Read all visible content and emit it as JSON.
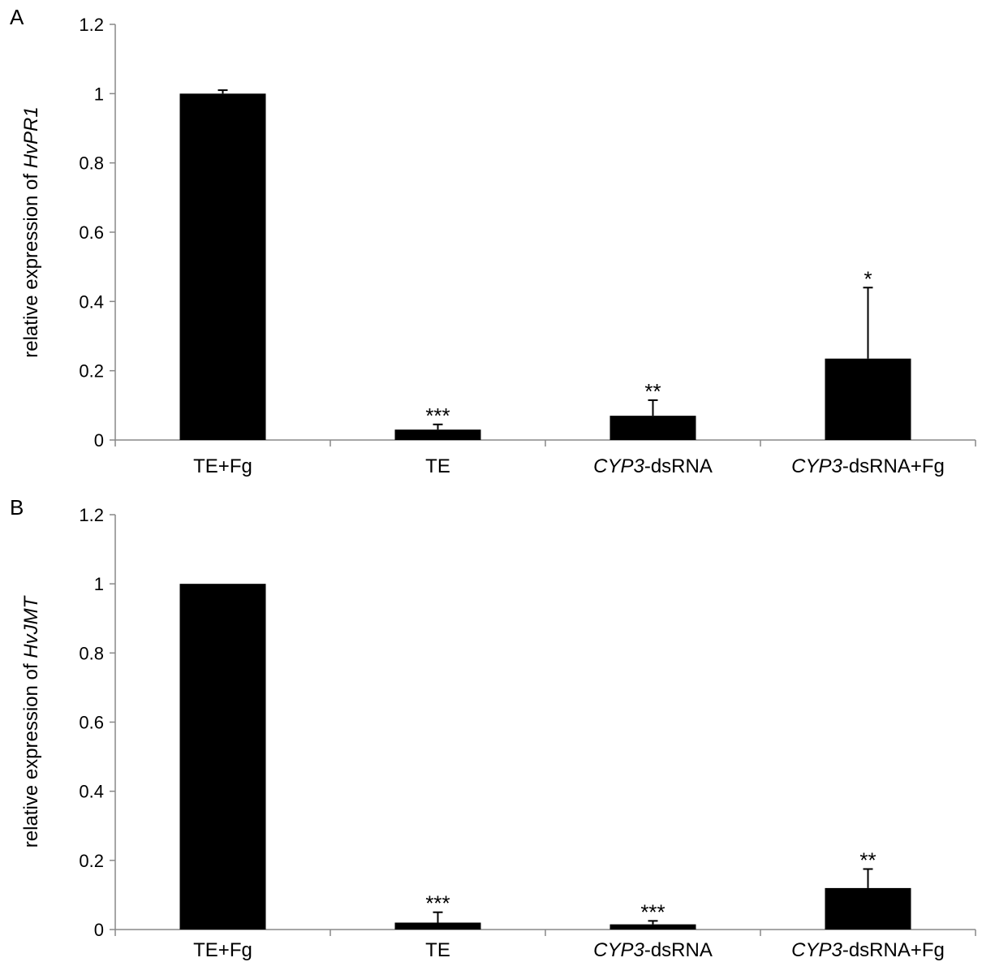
{
  "chart_data": [
    {
      "type": "bar",
      "panel_label": "A",
      "categories": [
        {
          "label": "TE+Fg",
          "italic": "",
          "rest": "TE+Fg"
        },
        {
          "label": "TE",
          "italic": "",
          "rest": "TE"
        },
        {
          "label": "CYP3-dsRNA",
          "italic": "CYP3",
          "rest": "-dsRNA"
        },
        {
          "label": "CYP3-dsRNA+Fg",
          "italic": "CYP3",
          "rest": "-dsRNA+Fg"
        }
      ],
      "values": [
        1.0,
        0.03,
        0.07,
        0.235
      ],
      "errors": [
        0.01,
        0.015,
        0.045,
        0.205
      ],
      "significance": [
        "",
        "***",
        "**",
        "*"
      ],
      "ylabel": {
        "text": "relative expression of ",
        "italic": "HvPR1"
      },
      "yticks": [
        "0",
        "0.2",
        "0.4",
        "0.6",
        "0.8",
        "1",
        "1.2"
      ],
      "ylim": [
        0,
        1.2
      ],
      "grid": false,
      "legend": "none",
      "bar_color": "#000000"
    },
    {
      "type": "bar",
      "panel_label": "B",
      "categories": [
        {
          "label": "TE+Fg",
          "italic": "",
          "rest": "TE+Fg"
        },
        {
          "label": "TE",
          "italic": "",
          "rest": "TE"
        },
        {
          "label": "CYP3-dsRNA",
          "italic": "CYP3",
          "rest": "-dsRNA"
        },
        {
          "label": "CYP3-dsRNA+Fg",
          "italic": "CYP3",
          "rest": "-dsRNA+Fg"
        }
      ],
      "values": [
        1.0,
        0.02,
        0.015,
        0.12
      ],
      "errors": [
        0.0,
        0.03,
        0.01,
        0.055
      ],
      "significance": [
        "",
        "***",
        "***",
        "**"
      ],
      "ylabel": {
        "text": "relative expression of ",
        "italic": "HvJMT"
      },
      "yticks": [
        "0",
        "0.2",
        "0.4",
        "0.6",
        "0.8",
        "1",
        "1.2"
      ],
      "ylim": [
        0,
        1.2
      ],
      "grid": false,
      "legend": "none",
      "bar_color": "#000000"
    }
  ]
}
